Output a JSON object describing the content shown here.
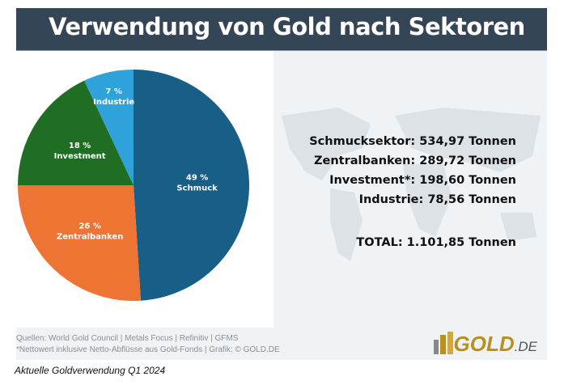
{
  "chart_data": {
    "type": "pie",
    "title": "Verwendung von Gold nach Sektoren",
    "slices": [
      {
        "name": "Schmuck",
        "percent": 49,
        "label": "49 %",
        "color": "#185f87"
      },
      {
        "name": "Zentralbanken",
        "percent": 26,
        "label": "26 %",
        "color": "#ee7433"
      },
      {
        "name": "Investment",
        "percent": 18,
        "label": "18 %",
        "color": "#1f6e24"
      },
      {
        "name": "Industrie",
        "percent": 7,
        "label": "7 %",
        "color": "#2fa2dc"
      }
    ]
  },
  "stats": [
    "Schmucksektor: 534,97 Tonnen",
    "Zentralbanken: 289,72 Tonnen",
    "Investment*: 198,60 Tonnen",
    "Industrie: 78,56 Tonnen"
  ],
  "total": "TOTAL: 1.101,85 Tonnen",
  "sources": "Quellen: World Gold Council | Metals Focus | Refinitiv | GFMS",
  "note": "*Nettowert inklusive Netto-Abflüsse aus Gold-Fonds  |  Grafik: © GOLD.DE",
  "logo": {
    "main": "GOLD",
    "suffix": ".DE"
  },
  "caption": "Aktuelle Goldverwendung Q1 2024"
}
